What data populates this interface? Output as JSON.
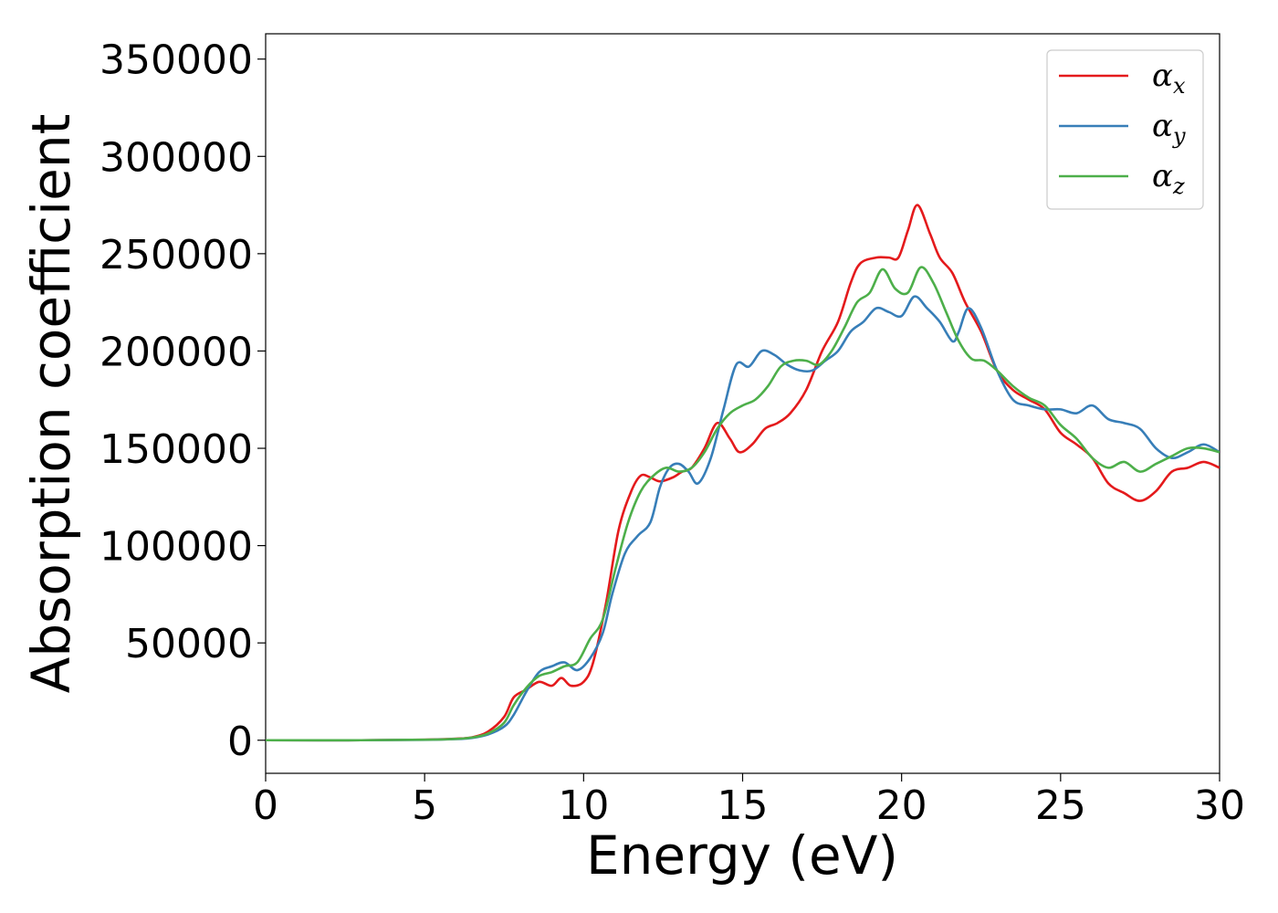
{
  "chart_data": {
    "type": "line",
    "xlabel": "Energy (eV)",
    "ylabel": "Absorption coefficient",
    "xlim": [
      0,
      30
    ],
    "ylim": [
      -17000,
      363000
    ],
    "xticks": [
      0,
      5,
      10,
      15,
      20,
      25,
      30
    ],
    "xtick_labels": [
      "0",
      "5",
      "10",
      "15",
      "20",
      "25",
      "30"
    ],
    "yticks": [
      0,
      50000,
      100000,
      150000,
      200000,
      250000,
      300000,
      350000
    ],
    "ytick_labels": [
      "0",
      "50000",
      "100000",
      "150000",
      "200000",
      "250000",
      "300000",
      "350000"
    ],
    "grid": false,
    "legend_position": "top-right",
    "series": [
      {
        "name": "α",
        "subscript": "x",
        "color": "#e41a1c",
        "points": [
          [
            0,
            0
          ],
          [
            3,
            0
          ],
          [
            5,
            300
          ],
          [
            6,
            800
          ],
          [
            6.5,
            1500
          ],
          [
            7,
            4500
          ],
          [
            7.5,
            12000
          ],
          [
            7.8,
            22000
          ],
          [
            8.2,
            26000
          ],
          [
            8.6,
            30000
          ],
          [
            9,
            28000
          ],
          [
            9.3,
            32000
          ],
          [
            9.6,
            28000
          ],
          [
            10,
            30000
          ],
          [
            10.3,
            40000
          ],
          [
            10.7,
            70000
          ],
          [
            11.1,
            108000
          ],
          [
            11.5,
            128000
          ],
          [
            11.8,
            136000
          ],
          [
            12.1,
            135000
          ],
          [
            12.4,
            133000
          ],
          [
            12.8,
            135000
          ],
          [
            13.1,
            138000
          ],
          [
            13.4,
            140000
          ],
          [
            13.8,
            150000
          ],
          [
            14.2,
            163000
          ],
          [
            14.6,
            155000
          ],
          [
            14.9,
            148000
          ],
          [
            15.3,
            152000
          ],
          [
            15.7,
            160000
          ],
          [
            16.1,
            163000
          ],
          [
            16.5,
            168000
          ],
          [
            17,
            180000
          ],
          [
            17.5,
            200000
          ],
          [
            18,
            215000
          ],
          [
            18.4,
            235000
          ],
          [
            18.7,
            245000
          ],
          [
            19.2,
            248000
          ],
          [
            19.6,
            248000
          ],
          [
            19.9,
            248000
          ],
          [
            20.2,
            262000
          ],
          [
            20.5,
            275000
          ],
          [
            20.9,
            260000
          ],
          [
            21.2,
            248000
          ],
          [
            21.6,
            240000
          ],
          [
            22,
            225000
          ],
          [
            22.5,
            210000
          ],
          [
            23,
            190000
          ],
          [
            23.5,
            180000
          ],
          [
            24,
            175000
          ],
          [
            24.5,
            170000
          ],
          [
            25,
            158000
          ],
          [
            25.5,
            152000
          ],
          [
            26,
            145000
          ],
          [
            26.5,
            132000
          ],
          [
            27,
            127000
          ],
          [
            27.5,
            123000
          ],
          [
            28,
            128000
          ],
          [
            28.5,
            138000
          ],
          [
            29,
            140000
          ],
          [
            29.5,
            143000
          ],
          [
            30,
            140000
          ]
        ]
      },
      {
        "name": "α",
        "subscript": "y",
        "color": "#377eb8",
        "points": [
          [
            0,
            0
          ],
          [
            3,
            0
          ],
          [
            5,
            200
          ],
          [
            6,
            600
          ],
          [
            6.5,
            1200
          ],
          [
            7,
            3000
          ],
          [
            7.5,
            7000
          ],
          [
            7.8,
            13000
          ],
          [
            8.2,
            25000
          ],
          [
            8.6,
            35000
          ],
          [
            9,
            38000
          ],
          [
            9.4,
            40000
          ],
          [
            9.8,
            36000
          ],
          [
            10.2,
            42000
          ],
          [
            10.6,
            55000
          ],
          [
            10.9,
            75000
          ],
          [
            11.3,
            96000
          ],
          [
            11.7,
            105000
          ],
          [
            12.1,
            112000
          ],
          [
            12.4,
            130000
          ],
          [
            12.7,
            140000
          ],
          [
            13,
            142000
          ],
          [
            13.3,
            138000
          ],
          [
            13.6,
            132000
          ],
          [
            14,
            145000
          ],
          [
            14.4,
            170000
          ],
          [
            14.8,
            193000
          ],
          [
            15.2,
            192000
          ],
          [
            15.6,
            200000
          ],
          [
            16,
            198000
          ],
          [
            16.4,
            193000
          ],
          [
            16.8,
            190000
          ],
          [
            17.2,
            190000
          ],
          [
            17.6,
            195000
          ],
          [
            18,
            200000
          ],
          [
            18.4,
            210000
          ],
          [
            18.8,
            215000
          ],
          [
            19.2,
            222000
          ],
          [
            19.6,
            220000
          ],
          [
            20,
            218000
          ],
          [
            20.4,
            228000
          ],
          [
            20.8,
            222000
          ],
          [
            21.2,
            215000
          ],
          [
            21.6,
            205000
          ],
          [
            21.8,
            210000
          ],
          [
            22.1,
            222000
          ],
          [
            22.5,
            212000
          ],
          [
            23,
            190000
          ],
          [
            23.5,
            175000
          ],
          [
            24,
            172000
          ],
          [
            24.5,
            170000
          ],
          [
            25,
            170000
          ],
          [
            25.5,
            168000
          ],
          [
            26,
            172000
          ],
          [
            26.5,
            165000
          ],
          [
            27,
            163000
          ],
          [
            27.5,
            160000
          ],
          [
            28,
            150000
          ],
          [
            28.5,
            145000
          ],
          [
            29,
            148000
          ],
          [
            29.5,
            152000
          ],
          [
            30,
            148000
          ]
        ]
      },
      {
        "name": "α",
        "subscript": "z",
        "color": "#4daf4a",
        "points": [
          [
            0,
            0
          ],
          [
            3,
            0
          ],
          [
            5,
            250
          ],
          [
            6,
            700
          ],
          [
            6.5,
            1400
          ],
          [
            7,
            3500
          ],
          [
            7.5,
            9000
          ],
          [
            7.8,
            18000
          ],
          [
            8.2,
            27000
          ],
          [
            8.6,
            33000
          ],
          [
            9,
            35000
          ],
          [
            9.4,
            38000
          ],
          [
            9.8,
            40000
          ],
          [
            10.2,
            52000
          ],
          [
            10.6,
            62000
          ],
          [
            11,
            88000
          ],
          [
            11.4,
            112000
          ],
          [
            11.8,
            128000
          ],
          [
            12.2,
            136000
          ],
          [
            12.6,
            140000
          ],
          [
            13,
            138000
          ],
          [
            13.4,
            140000
          ],
          [
            13.8,
            148000
          ],
          [
            14.2,
            160000
          ],
          [
            14.6,
            168000
          ],
          [
            15,
            172000
          ],
          [
            15.4,
            175000
          ],
          [
            15.8,
            182000
          ],
          [
            16.2,
            192000
          ],
          [
            16.6,
            195000
          ],
          [
            17,
            195000
          ],
          [
            17.4,
            193000
          ],
          [
            17.8,
            200000
          ],
          [
            18.2,
            212000
          ],
          [
            18.6,
            225000
          ],
          [
            19,
            230000
          ],
          [
            19.4,
            242000
          ],
          [
            19.8,
            232000
          ],
          [
            20.2,
            230000
          ],
          [
            20.6,
            243000
          ],
          [
            21,
            235000
          ],
          [
            21.4,
            220000
          ],
          [
            21.8,
            205000
          ],
          [
            22.2,
            196000
          ],
          [
            22.6,
            195000
          ],
          [
            23,
            190000
          ],
          [
            23.5,
            182000
          ],
          [
            24,
            176000
          ],
          [
            24.5,
            172000
          ],
          [
            25,
            162000
          ],
          [
            25.5,
            155000
          ],
          [
            26,
            145000
          ],
          [
            26.5,
            140000
          ],
          [
            27,
            143000
          ],
          [
            27.5,
            138000
          ],
          [
            28,
            142000
          ],
          [
            28.5,
            146000
          ],
          [
            29,
            150000
          ],
          [
            29.5,
            150000
          ],
          [
            30,
            148000
          ]
        ]
      }
    ]
  }
}
